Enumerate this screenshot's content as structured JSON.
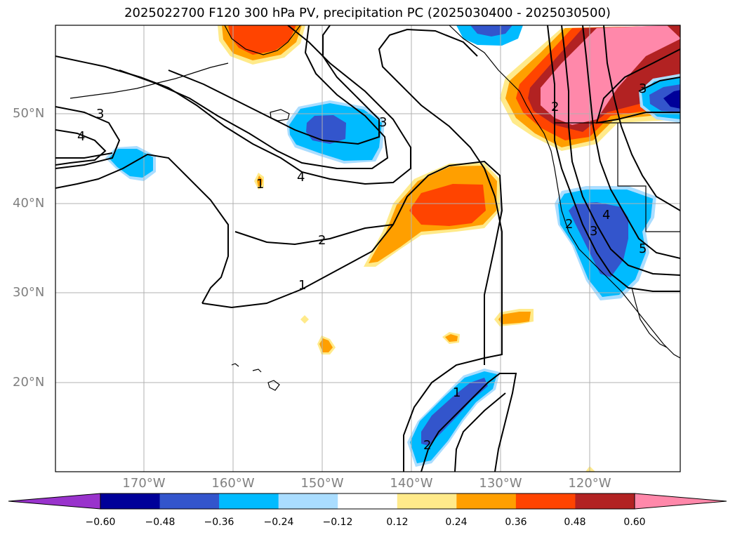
{
  "title": "2025022700 F120 300 hPa PV, precipitation PC (2025030400 - 2025030500)",
  "lat_labels": [
    "50°N",
    "40°N",
    "30°N",
    "20°N"
  ],
  "lon_labels": [
    "170°W",
    "160°W",
    "150°W",
    "140°W",
    "130°W",
    "120°W"
  ],
  "contour_labels": [
    "3",
    "4",
    "4",
    "3",
    "2",
    "1",
    "1",
    "2",
    "3",
    "2",
    "4",
    "3",
    "5",
    "1",
    "2"
  ],
  "colorbar": {
    "colors": [
      "#9933cc",
      "#000099",
      "#3355cc",
      "#00bbff",
      "#aaddff",
      "#ffffff",
      "#ffea8a",
      "#ff9f00",
      "#ff4400",
      "#b22222",
      "#ff88aa",
      "#ff88aa"
    ],
    "labels": [
      "−0.60",
      "−0.48",
      "−0.36",
      "−0.24",
      "−0.12",
      "0.12",
      "0.24",
      "0.36",
      "0.48",
      "0.60"
    ]
  },
  "colors": {
    "orange": "#ff9f00",
    "red": "#ff4400",
    "darkred": "#b22222",
    "pink": "#ff88aa",
    "yellow": "#ffea8a",
    "lightblue": "#aaddff",
    "cyan": "#00bbff",
    "blue": "#3355cc",
    "navy": "#000099"
  }
}
